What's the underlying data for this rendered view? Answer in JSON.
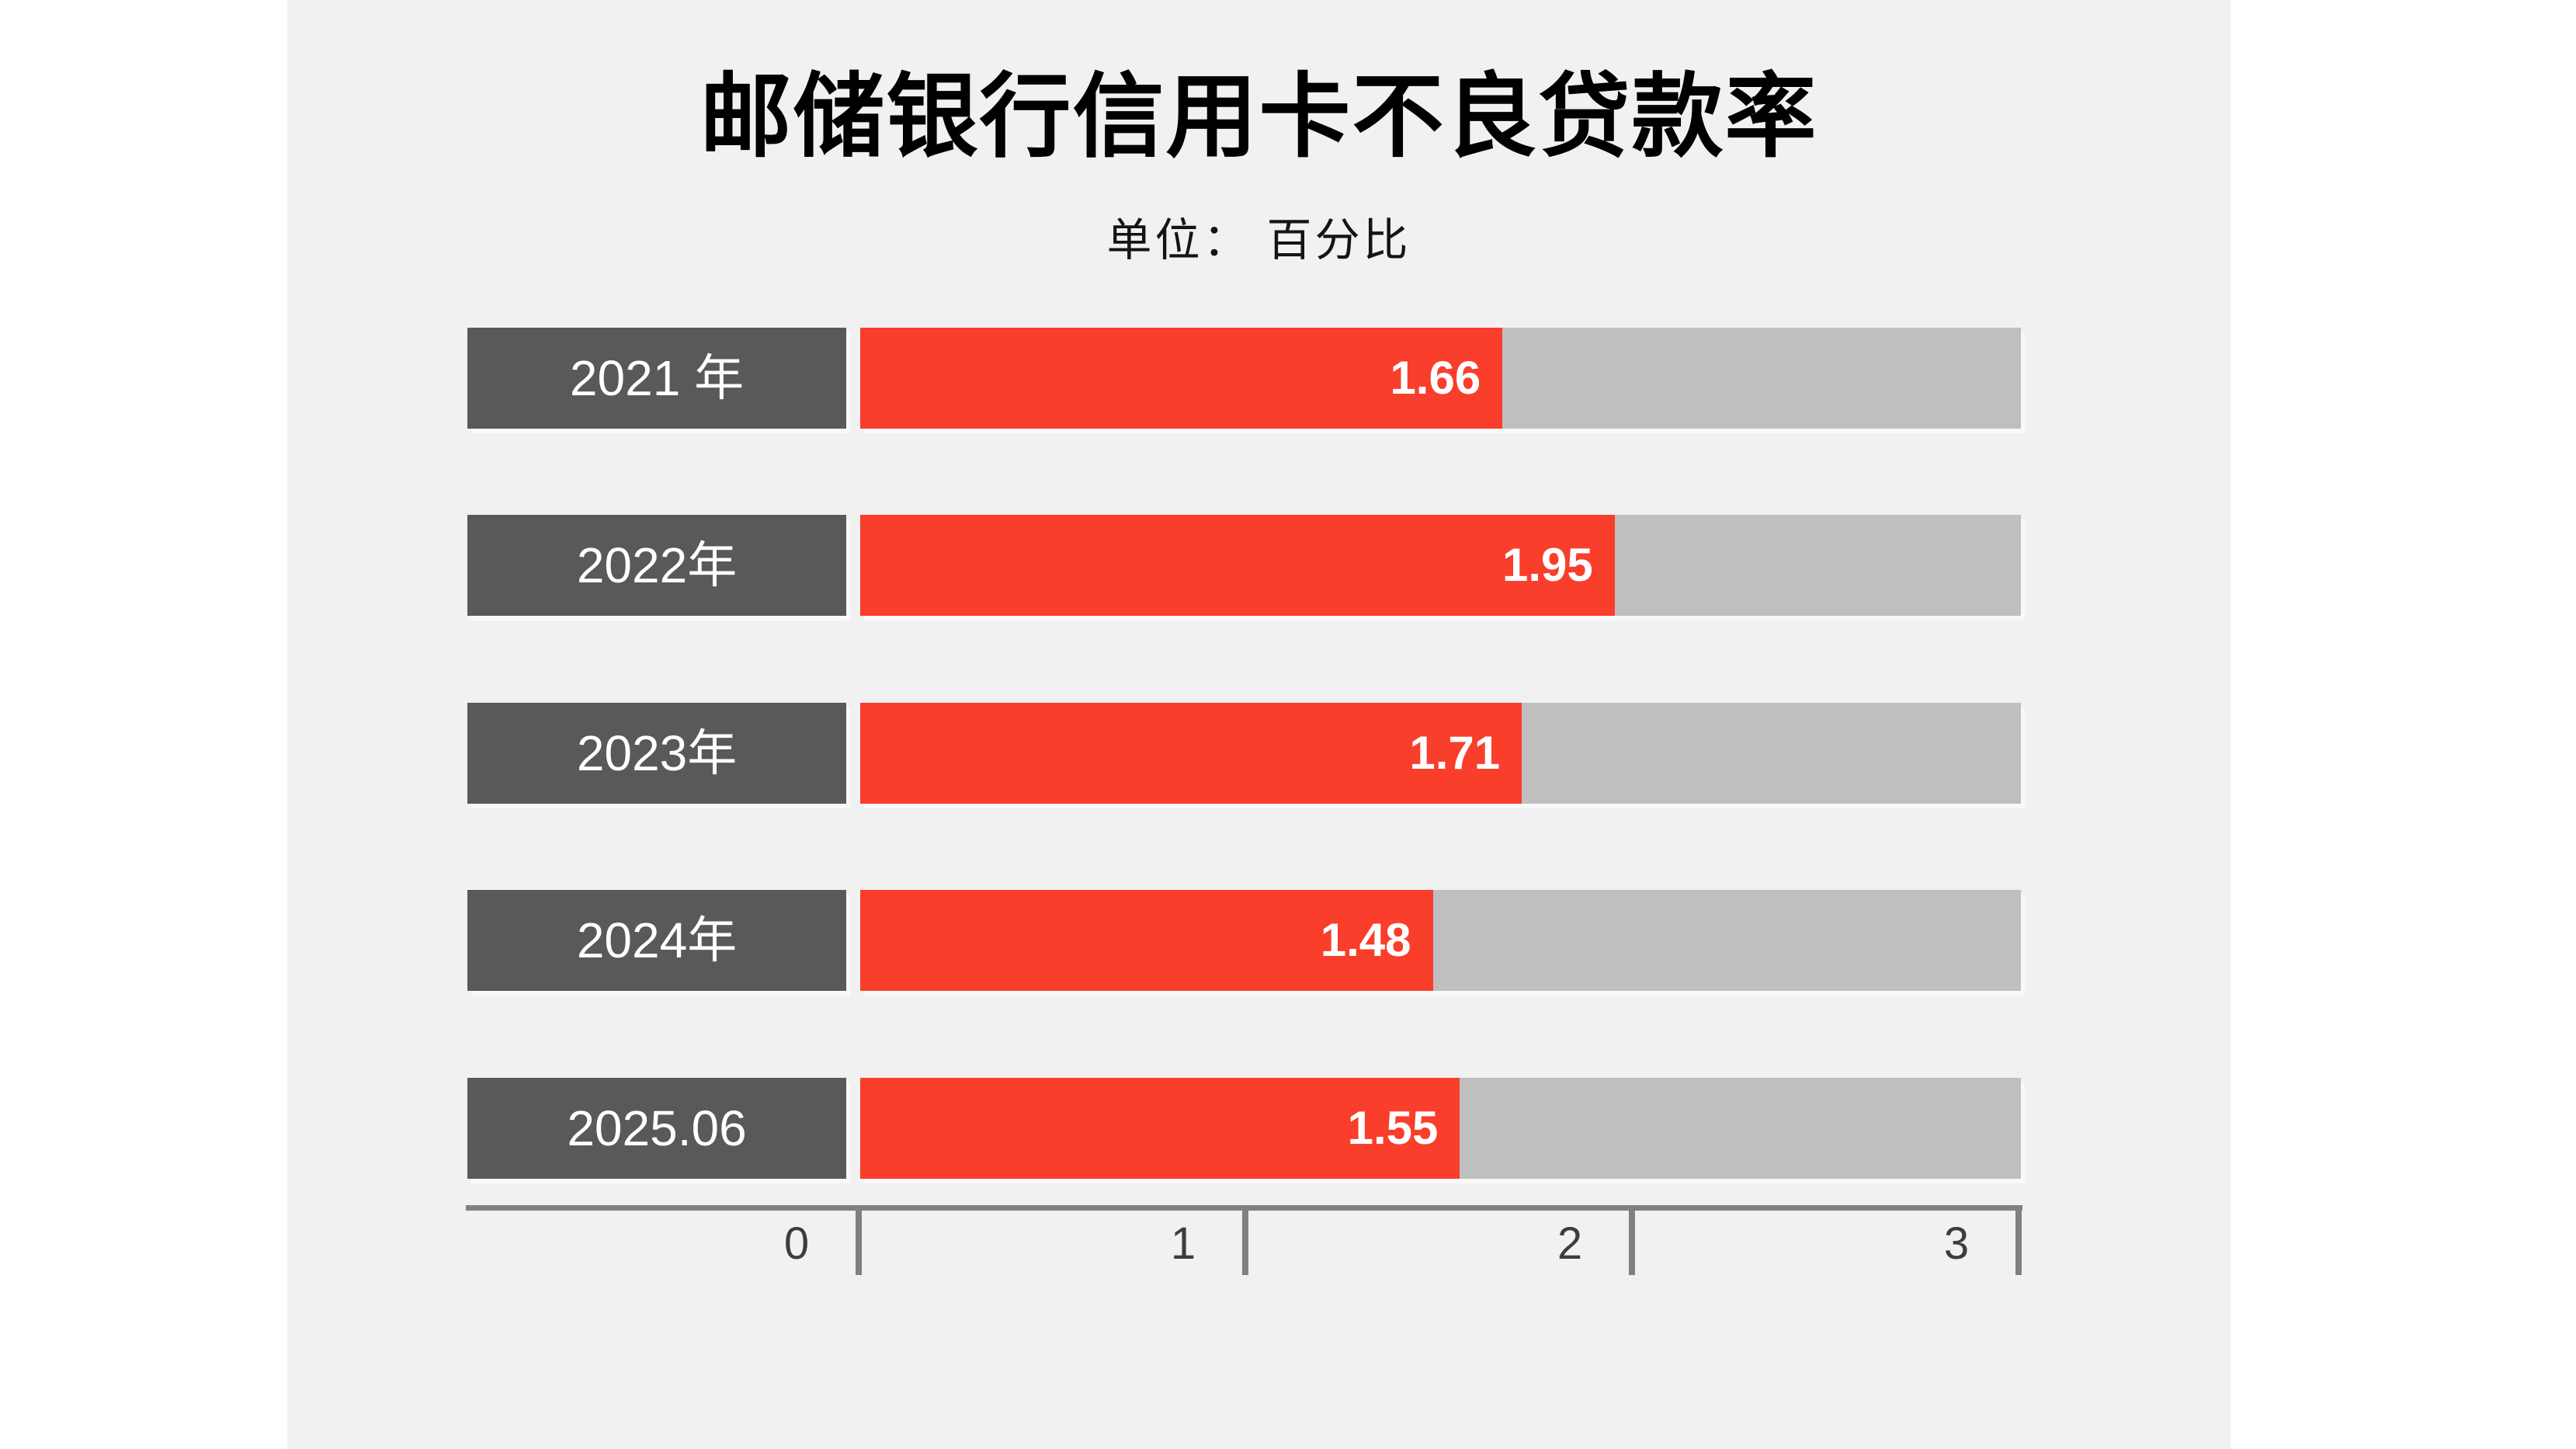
{
  "page": {
    "background_color": "#ffffff",
    "panel_color": "#f1f1f2"
  },
  "header": {
    "title": "邮储银行信用卡不良贷款率",
    "subtitle": "单位：  百分比"
  },
  "chart_data": {
    "type": "bar",
    "orientation": "horizontal",
    "title": "邮储银行信用卡不良贷款率",
    "subtitle": "单位：  百分比",
    "unit": "百分比",
    "categories": [
      "2021 年",
      "2022年",
      "2023年",
      "2024年",
      "2025.06"
    ],
    "values": [
      1.66,
      1.95,
      1.71,
      1.48,
      1.55
    ],
    "value_labels": [
      "1.66",
      "1.95",
      "1.71",
      "1.48",
      "1.55"
    ],
    "xlim": [
      0,
      3
    ],
    "x_ticks": [
      "0",
      "1",
      "2",
      "3"
    ],
    "x_tick_values": [
      0,
      1,
      2,
      3
    ],
    "grid": "off",
    "legend": "none",
    "colors": {
      "bar_fill": "#f93e2c",
      "bar_track": "#bfbfbf",
      "category_box": "#595959",
      "category_text": "#ffffff",
      "value_text": "#ffffff",
      "axis_line": "#808080",
      "tick_text": "#3d3d3d",
      "title_text": "#000000"
    }
  }
}
